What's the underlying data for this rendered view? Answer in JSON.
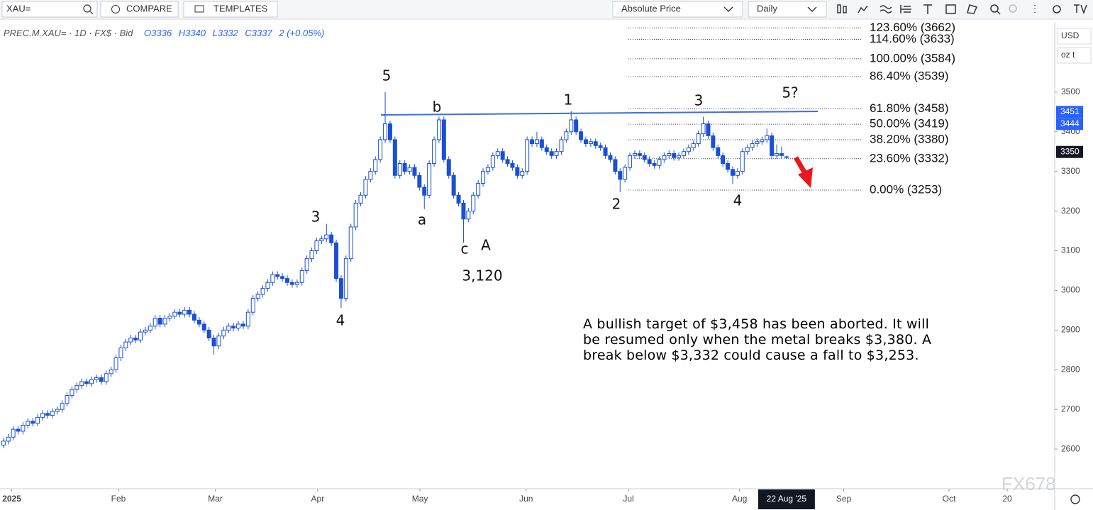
{
  "toolbar": {
    "search": "XAU=",
    "compare": "COMPARE",
    "templates": "TEMPLATES",
    "price_mode": "Absolute Price",
    "interval": "Daily"
  },
  "legend": {
    "symbol": "PREC.M.XAU= · 1D · FX$ · Bid",
    "ohlc": [
      "O3336",
      "H3340",
      "L3332",
      "C3337"
    ],
    "change": "2 (+0.05%)"
  },
  "chart_data": {
    "type": "candlestick",
    "up_color": "#ffffff",
    "down_color": "#1a4fd6",
    "outline_color": "#1a4fd6",
    "currency": "USD",
    "unit": "oz t",
    "ylim": [
      2500,
      3675
    ],
    "yticks": [
      2600,
      2700,
      2800,
      2900,
      3000,
      3100,
      3200,
      3300,
      3400,
      3500
    ],
    "xlim": [
      -0.7,
      214.8
    ],
    "xticks": [
      {
        "value": 1.7,
        "label": "2025"
      },
      {
        "value": 23.5,
        "label": "Feb"
      },
      {
        "value": 43.3,
        "label": "Mar"
      },
      {
        "value": 64.2,
        "label": "Apr"
      },
      {
        "value": 85.1,
        "label": "May"
      },
      {
        "value": 106.8,
        "label": "Jun"
      },
      {
        "value": 127.7,
        "label": "Jul"
      },
      {
        "value": 150.4,
        "label": "Aug"
      },
      {
        "value": 171.7,
        "label": "Sep"
      },
      {
        "value": 193.2,
        "label": "Oct"
      },
      {
        "value": 205.1,
        "label": "20"
      }
    ],
    "crosshair_label": "22 Aug '25",
    "price_badges": [
      {
        "value": 3451,
        "color": "#2962ff"
      },
      {
        "value": 3444,
        "color": "#2962ff"
      },
      {
        "value": 3350,
        "color": "#131722"
      }
    ],
    "fib_levels": [
      {
        "value": 3662,
        "label": "123.60% (3662)"
      },
      {
        "value": 3633,
        "label": "114.60% (3633)"
      },
      {
        "value": 3584,
        "label": "100.00% (3584)"
      },
      {
        "value": 3539,
        "label": "86.40% (3539)"
      },
      {
        "value": 3458,
        "label": "61.80% (3458)"
      },
      {
        "value": 3419,
        "label": "50.00% (3419)"
      },
      {
        "value": 3380,
        "label": "38.20% (3380)"
      },
      {
        "value": 3332,
        "label": "23.60% (3332)"
      },
      {
        "value": 3253,
        "label": "0.00% (3253)"
      }
    ],
    "wave_labels": [
      "5",
      "b",
      "1",
      "3",
      "5?",
      "3",
      "a",
      "c",
      "A",
      "3,120",
      "4",
      "2",
      "4"
    ],
    "annotation": "A bullish target of $3,458 has been aborted. It will be resumed only when the metal breaks $3,380. A break below $3,332 could cause a fall to $3,253.",
    "watermark": "FX678",
    "candles": [
      [
        2610,
        2628,
        2602,
        2620
      ],
      [
        2620,
        2638,
        2612,
        2630
      ],
      [
        2630,
        2658,
        2622,
        2650
      ],
      [
        2650,
        2658,
        2637,
        2645
      ],
      [
        2645,
        2668,
        2637,
        2660
      ],
      [
        2660,
        2678,
        2652,
        2670
      ],
      [
        2670,
        2678,
        2657,
        2665
      ],
      [
        2665,
        2688,
        2657,
        2680
      ],
      [
        2680,
        2698,
        2672,
        2690
      ],
      [
        2690,
        2698,
        2677,
        2685
      ],
      [
        2685,
        2703,
        2677,
        2695
      ],
      [
        2695,
        2708,
        2687,
        2700
      ],
      [
        2700,
        2723,
        2692,
        2715
      ],
      [
        2715,
        2743,
        2707,
        2735
      ],
      [
        2735,
        2758,
        2727,
        2750
      ],
      [
        2750,
        2768,
        2742,
        2760
      ],
      [
        2760,
        2778,
        2752,
        2770
      ],
      [
        2770,
        2778,
        2757,
        2765
      ],
      [
        2765,
        2783,
        2757,
        2775
      ],
      [
        2775,
        2788,
        2767,
        2780
      ],
      [
        2780,
        2788,
        2762,
        2770
      ],
      [
        2770,
        2798,
        2762,
        2790
      ],
      [
        2790,
        2808,
        2782,
        2800
      ],
      [
        2800,
        2838,
        2792,
        2830
      ],
      [
        2830,
        2863,
        2822,
        2855
      ],
      [
        2855,
        2878,
        2847,
        2870
      ],
      [
        2870,
        2888,
        2862,
        2880
      ],
      [
        2880,
        2888,
        2867,
        2875
      ],
      [
        2875,
        2903,
        2867,
        2895
      ],
      [
        2895,
        2908,
        2887,
        2900
      ],
      [
        2900,
        2918,
        2892,
        2910
      ],
      [
        2910,
        2938,
        2902,
        2930
      ],
      [
        2930,
        2938,
        2907,
        2915
      ],
      [
        2915,
        2938,
        2907,
        2930
      ],
      [
        2930,
        2943,
        2922,
        2935
      ],
      [
        2935,
        2953,
        2927,
        2945
      ],
      [
        2945,
        2953,
        2932,
        2940
      ],
      [
        2940,
        2958,
        2932,
        2950
      ],
      [
        2950,
        2958,
        2932,
        2940
      ],
      [
        2940,
        2948,
        2917,
        2925
      ],
      [
        2925,
        2933,
        2907,
        2915
      ],
      [
        2915,
        2923,
        2892,
        2900
      ],
      [
        2900,
        2908,
        2872,
        2880
      ],
      [
        2880,
        2888,
        2838,
        2860
      ],
      [
        2860,
        2893,
        2852,
        2885
      ],
      [
        2885,
        2908,
        2877,
        2900
      ],
      [
        2900,
        2918,
        2892,
        2910
      ],
      [
        2910,
        2918,
        2897,
        2905
      ],
      [
        2905,
        2923,
        2897,
        2915
      ],
      [
        2915,
        2923,
        2902,
        2910
      ],
      [
        2910,
        2953,
        2902,
        2945
      ],
      [
        2945,
        2988,
        2937,
        2980
      ],
      [
        2980,
        2998,
        2972,
        2990
      ],
      [
        2990,
        3013,
        2982,
        3005
      ],
      [
        3005,
        3028,
        2997,
        3020
      ],
      [
        3020,
        3048,
        3012,
        3040
      ],
      [
        3040,
        3048,
        3027,
        3035
      ],
      [
        3035,
        3043,
        3022,
        3030
      ],
      [
        3030,
        3038,
        3012,
        3020
      ],
      [
        3020,
        3028,
        3007,
        3015
      ],
      [
        3015,
        3028,
        3007,
        3020
      ],
      [
        3020,
        3058,
        3012,
        3050
      ],
      [
        3050,
        3088,
        3042,
        3080
      ],
      [
        3080,
        3108,
        3072,
        3100
      ],
      [
        3100,
        3133,
        3092,
        3125
      ],
      [
        3125,
        3138,
        3117,
        3130
      ],
      [
        3130,
        3168,
        3122,
        3140
      ],
      [
        3140,
        3148,
        3112,
        3120
      ],
      [
        3120,
        3128,
        3022,
        3030
      ],
      [
        3030,
        3038,
        2956,
        2980
      ],
      [
        2980,
        3088,
        2972,
        3080
      ],
      [
        3080,
        3168,
        3072,
        3160
      ],
      [
        3160,
        3228,
        3152,
        3220
      ],
      [
        3220,
        3248,
        3212,
        3240
      ],
      [
        3240,
        3288,
        3232,
        3280
      ],
      [
        3280,
        3308,
        3272,
        3300
      ],
      [
        3300,
        3338,
        3292,
        3330
      ],
      [
        3330,
        3388,
        3322,
        3380
      ],
      [
        3380,
        3500,
        3372,
        3420
      ],
      [
        3420,
        3428,
        3372,
        3380
      ],
      [
        3380,
        3388,
        3282,
        3290
      ],
      [
        3290,
        3328,
        3282,
        3320
      ],
      [
        3320,
        3328,
        3292,
        3300
      ],
      [
        3300,
        3318,
        3292,
        3310
      ],
      [
        3310,
        3318,
        3282,
        3290
      ],
      [
        3290,
        3298,
        3252,
        3260
      ],
      [
        3260,
        3268,
        3205,
        3240
      ],
      [
        3240,
        3328,
        3232,
        3320
      ],
      [
        3320,
        3388,
        3312,
        3380
      ],
      [
        3380,
        3438,
        3372,
        3430
      ],
      [
        3430,
        3438,
        3322,
        3330
      ],
      [
        3330,
        3338,
        3282,
        3290
      ],
      [
        3290,
        3298,
        3232,
        3240
      ],
      [
        3240,
        3248,
        3212,
        3220
      ],
      [
        3220,
        3228,
        3120,
        3180
      ],
      [
        3180,
        3208,
        3172,
        3200
      ],
      [
        3200,
        3248,
        3192,
        3240
      ],
      [
        3240,
        3278,
        3232,
        3270
      ],
      [
        3270,
        3308,
        3262,
        3300
      ],
      [
        3300,
        3318,
        3292,
        3310
      ],
      [
        3310,
        3348,
        3302,
        3340
      ],
      [
        3340,
        3358,
        3332,
        3350
      ],
      [
        3350,
        3358,
        3322,
        3330
      ],
      [
        3330,
        3338,
        3312,
        3320
      ],
      [
        3320,
        3328,
        3302,
        3310
      ],
      [
        3310,
        3318,
        3282,
        3290
      ],
      [
        3290,
        3308,
        3282,
        3300
      ],
      [
        3300,
        3388,
        3292,
        3380
      ],
      [
        3380,
        3388,
        3362,
        3370
      ],
      [
        3370,
        3400,
        3362,
        3380
      ],
      [
        3380,
        3388,
        3352,
        3360
      ],
      [
        3360,
        3368,
        3342,
        3350
      ],
      [
        3350,
        3358,
        3332,
        3340
      ],
      [
        3340,
        3358,
        3332,
        3350
      ],
      [
        3350,
        3388,
        3342,
        3380
      ],
      [
        3380,
        3408,
        3372,
        3400
      ],
      [
        3400,
        3452,
        3392,
        3430
      ],
      [
        3430,
        3438,
        3392,
        3400
      ],
      [
        3400,
        3408,
        3372,
        3380
      ],
      [
        3380,
        3388,
        3362,
        3370
      ],
      [
        3370,
        3383,
        3362,
        3375
      ],
      [
        3375,
        3383,
        3357,
        3365
      ],
      [
        3365,
        3373,
        3352,
        3360
      ],
      [
        3360,
        3368,
        3332,
        3340
      ],
      [
        3340,
        3348,
        3322,
        3330
      ],
      [
        3330,
        3338,
        3292,
        3300
      ],
      [
        3300,
        3308,
        3248,
        3280
      ],
      [
        3280,
        3318,
        3272,
        3310
      ],
      [
        3310,
        3348,
        3302,
        3340
      ],
      [
        3340,
        3353,
        3332,
        3345
      ],
      [
        3345,
        3353,
        3332,
        3340
      ],
      [
        3340,
        3348,
        3322,
        3330
      ],
      [
        3330,
        3338,
        3312,
        3320
      ],
      [
        3320,
        3328,
        3307,
        3315
      ],
      [
        3315,
        3338,
        3307,
        3330
      ],
      [
        3330,
        3348,
        3322,
        3340
      ],
      [
        3340,
        3353,
        3332,
        3345
      ],
      [
        3345,
        3353,
        3327,
        3335
      ],
      [
        3335,
        3348,
        3327,
        3340
      ],
      [
        3340,
        3358,
        3332,
        3350
      ],
      [
        3350,
        3368,
        3342,
        3360
      ],
      [
        3360,
        3378,
        3352,
        3370
      ],
      [
        3370,
        3403,
        3362,
        3395
      ],
      [
        3395,
        3438,
        3387,
        3420
      ],
      [
        3420,
        3428,
        3382,
        3390
      ],
      [
        3390,
        3398,
        3352,
        3360
      ],
      [
        3360,
        3368,
        3332,
        3340
      ],
      [
        3340,
        3348,
        3312,
        3320
      ],
      [
        3320,
        3328,
        3297,
        3305
      ],
      [
        3305,
        3313,
        3268,
        3290
      ],
      [
        3290,
        3308,
        3282,
        3300
      ],
      [
        3300,
        3358,
        3292,
        3350
      ],
      [
        3350,
        3368,
        3342,
        3360
      ],
      [
        3360,
        3378,
        3352,
        3370
      ],
      [
        3370,
        3383,
        3362,
        3375
      ],
      [
        3375,
        3388,
        3367,
        3380
      ],
      [
        3380,
        3408,
        3372,
        3390
      ],
      [
        3390,
        3398,
        3332,
        3340
      ],
      [
        3340,
        3368,
        3332,
        3345
      ],
      [
        3345,
        3363,
        3332,
        3340
      ],
      [
        3336,
        3340,
        3332,
        3337
      ]
    ]
  }
}
